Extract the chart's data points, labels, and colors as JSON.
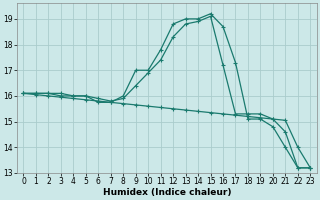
{
  "xlabel": "Humidex (Indice chaleur)",
  "bg_color": "#cce8e8",
  "grid_color": "#aacccc",
  "line_color": "#1a7a6e",
  "xlim": [
    -0.5,
    23.5
  ],
  "ylim": [
    13,
    19.6
  ],
  "yticks": [
    13,
    14,
    15,
    16,
    17,
    18,
    19
  ],
  "xticks": [
    0,
    1,
    2,
    3,
    4,
    5,
    6,
    7,
    8,
    9,
    10,
    11,
    12,
    13,
    14,
    15,
    16,
    17,
    18,
    19,
    20,
    21,
    22,
    23
  ],
  "line1_x": [
    0,
    1,
    2,
    3,
    4,
    5,
    6,
    7,
    8,
    9,
    10,
    11,
    12,
    13,
    14,
    15,
    16,
    17,
    18,
    19,
    20,
    21,
    22,
    23
  ],
  "line1_y": [
    16.1,
    16.1,
    16.1,
    16.1,
    16.0,
    16.0,
    15.75,
    15.75,
    16.0,
    17.0,
    17.0,
    17.8,
    18.8,
    19.0,
    19.0,
    19.2,
    18.7,
    17.3,
    15.1,
    15.1,
    14.8,
    14.0,
    13.2,
    13.2
  ],
  "line2_x": [
    0,
    1,
    2,
    3,
    4,
    5,
    6,
    7,
    8,
    9,
    10,
    11,
    12,
    13,
    14,
    15,
    16,
    17,
    18,
    19,
    20,
    21,
    22,
    23
  ],
  "line2_y": [
    16.1,
    16.05,
    16.0,
    15.95,
    15.9,
    15.85,
    15.8,
    15.75,
    15.7,
    15.65,
    15.6,
    15.55,
    15.5,
    15.45,
    15.4,
    15.35,
    15.3,
    15.25,
    15.2,
    15.15,
    15.1,
    15.05,
    14.0,
    13.2
  ],
  "line3_x": [
    0,
    1,
    2,
    3,
    4,
    5,
    6,
    7,
    8,
    9,
    10,
    11,
    12,
    13,
    14,
    15,
    16,
    17,
    18,
    19,
    20,
    21,
    22,
    23
  ],
  "line3_y": [
    16.1,
    16.1,
    16.1,
    16.0,
    16.0,
    16.0,
    15.9,
    15.8,
    15.9,
    16.4,
    16.9,
    17.4,
    18.3,
    18.8,
    18.9,
    19.1,
    17.2,
    15.3,
    15.3,
    15.3,
    15.1,
    14.6,
    13.2,
    13.2
  ]
}
